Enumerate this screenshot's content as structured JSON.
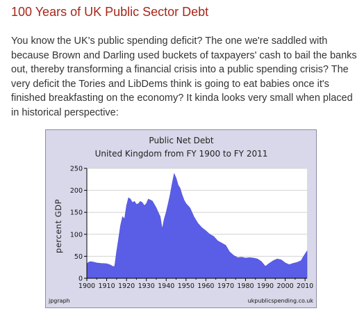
{
  "post": {
    "title": "100 Years of UK Public Sector Debt",
    "body": "You know the UK's public spending deficit? The one we're saddled with because Brown and Darling used buckets of taxpayers' cash to bail the banks out, thereby transforming a financial crisis into a public spending crisis? The very deficit the Tories and LibDems think is going to eat babies once it's finished breakfasting on the economy? It kinda looks very small when placed in historical perspective:"
  },
  "colors": {
    "title": "#a8261a",
    "body_text": "#333333",
    "chart_background": "#d8d8ea",
    "plot_background": "#ffffff",
    "area_fill": "#5a5ee6",
    "grid": "#d2d2d2"
  },
  "chart_data": {
    "type": "area",
    "title": "Public Net Debt",
    "subtitle": "United Kingdom from FY 1900 to FY 2011",
    "xlabel": "",
    "ylabel": "percent GDP",
    "xlim": [
      1900,
      2011
    ],
    "ylim": [
      0,
      250
    ],
    "x_ticks": [
      1900,
      1910,
      1920,
      1930,
      1940,
      1950,
      1960,
      1970,
      1980,
      1990,
      2000,
      2010
    ],
    "y_ticks": [
      0,
      50,
      100,
      150,
      200,
      250
    ],
    "grid": true,
    "credit_left": "jpgraph",
    "credit_right": "ukpublicspending.co.uk",
    "x": [
      1900,
      1901,
      1902,
      1903,
      1904,
      1905,
      1907,
      1910,
      1912,
      1913,
      1914,
      1915,
      1916,
      1917,
      1918,
      1919,
      1920,
      1921,
      1922,
      1923,
      1924,
      1925,
      1926,
      1927,
      1928,
      1929,
      1930,
      1931,
      1932,
      1933,
      1934,
      1935,
      1936,
      1937,
      1938,
      1939,
      1940,
      1941,
      1942,
      1943,
      1944,
      1945,
      1946,
      1947,
      1948,
      1949,
      1950,
      1952,
      1954,
      1956,
      1958,
      1960,
      1962,
      1964,
      1966,
      1968,
      1970,
      1972,
      1974,
      1976,
      1978,
      1980,
      1982,
      1984,
      1986,
      1988,
      1990,
      1992,
      1994,
      1996,
      1998,
      2000,
      2002,
      2004,
      2006,
      2008,
      2009,
      2010,
      2011
    ],
    "values": [
      33,
      37,
      38,
      37,
      36,
      35,
      34,
      33,
      30,
      27,
      27,
      60,
      90,
      120,
      140,
      135,
      165,
      183,
      180,
      172,
      175,
      168,
      170,
      175,
      172,
      165,
      170,
      180,
      178,
      176,
      168,
      160,
      150,
      140,
      112,
      135,
      150,
      170,
      190,
      215,
      238,
      228,
      212,
      205,
      190,
      178,
      170,
      160,
      140,
      125,
      115,
      108,
      100,
      95,
      85,
      80,
      75,
      60,
      52,
      47,
      48,
      46,
      47,
      46,
      44,
      38,
      27,
      34,
      40,
      44,
      42,
      35,
      31,
      34,
      36,
      40,
      48,
      55,
      62
    ]
  }
}
